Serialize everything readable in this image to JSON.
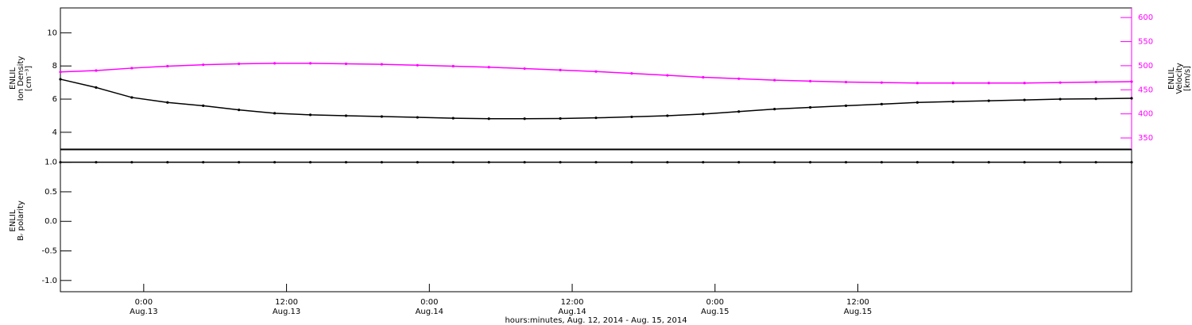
{
  "chart_data": [
    {
      "type": "line",
      "ylabel": [
        "ENLIL",
        "Ion Density",
        "[cm⁻³]"
      ],
      "y2label": [
        "ENLIL",
        "Velocity",
        "[km/s]"
      ],
      "x": [
        -7,
        -4,
        -1,
        2,
        5,
        8,
        11,
        14,
        17,
        20,
        23,
        26,
        29,
        32,
        35,
        38,
        41,
        44,
        47,
        50,
        53,
        56,
        59,
        62,
        65,
        68,
        71,
        74,
        77,
        80,
        83
      ],
      "xlim": [
        -7,
        83
      ],
      "ylim": [
        2.99,
        11.5
      ],
      "yticks": [
        4,
        6,
        8,
        10
      ],
      "y2lim": [
        327,
        620
      ],
      "y2ticks": [
        350,
        400,
        450,
        500,
        550,
        600
      ],
      "y2color": "#ff00ff",
      "series": [
        {
          "color": "#000000",
          "values": [
            7.2,
            6.7,
            6.1,
            5.8,
            5.6,
            5.35,
            5.15,
            5.05,
            5.0,
            4.95,
            4.9,
            4.85,
            4.82,
            4.82,
            4.83,
            4.87,
            4.93,
            5.0,
            5.1,
            5.25,
            5.4,
            5.5,
            5.6,
            5.7,
            5.8,
            5.85,
            5.9,
            5.95,
            6.0,
            6.02,
            6.05
          ]
        },
        {
          "color": "#ff00ff",
          "axis": "y2",
          "values": [
            487,
            490,
            495,
            499,
            502,
            504,
            505,
            505,
            504,
            503,
            501,
            499,
            497,
            494,
            491,
            488,
            484,
            480,
            476,
            473,
            470,
            468,
            466,
            465,
            464,
            464,
            464,
            464,
            465,
            466,
            467
          ]
        }
      ]
    },
    {
      "type": "line",
      "ylabel": [
        "ENLIL",
        "Bᵣ polarity"
      ],
      "x": [
        -7,
        -4,
        -1,
        2,
        5,
        8,
        11,
        14,
        17,
        20,
        23,
        26,
        29,
        32,
        35,
        38,
        41,
        44,
        47,
        50,
        53,
        56,
        59,
        62,
        65,
        68,
        71,
        74,
        77,
        80,
        83
      ],
      "xlim": [
        -7,
        83
      ],
      "ylim": [
        -1.19,
        1.21
      ],
      "yticks": [
        {
          "value": -1,
          "label": "-1.0"
        },
        {
          "value": -0.5,
          "label": "-0.5"
        },
        {
          "value": 0,
          "label": "0.0"
        },
        {
          "value": 0.5,
          "label": "0.5"
        },
        {
          "value": 1,
          "label": "1.0"
        }
      ],
      "xticks": [
        {
          "value": 0,
          "label": "0:00"
        },
        {
          "value": 12,
          "label": "12:00"
        },
        {
          "value": 24,
          "label": "0:00"
        },
        {
          "value": 36,
          "label": "12:00"
        },
        {
          "value": 48,
          "label": "0:00"
        },
        {
          "value": 60,
          "label": "12:00"
        }
      ],
      "xtick_dates": [
        "Aug.13",
        "Aug.13",
        "Aug.14",
        "Aug.14",
        "Aug.15",
        "Aug.15"
      ],
      "xlabel": "hours:minutes, Aug. 12, 2014 - Aug. 15, 2014",
      "series": [
        {
          "color": "#000000",
          "values": [
            1,
            1,
            1,
            1,
            1,
            1,
            1,
            1,
            1,
            1,
            1,
            1,
            1,
            1,
            1,
            1,
            1,
            1,
            1,
            1,
            1,
            1,
            1,
            1,
            1,
            1,
            1,
            1,
            1,
            1,
            1
          ]
        }
      ]
    }
  ]
}
